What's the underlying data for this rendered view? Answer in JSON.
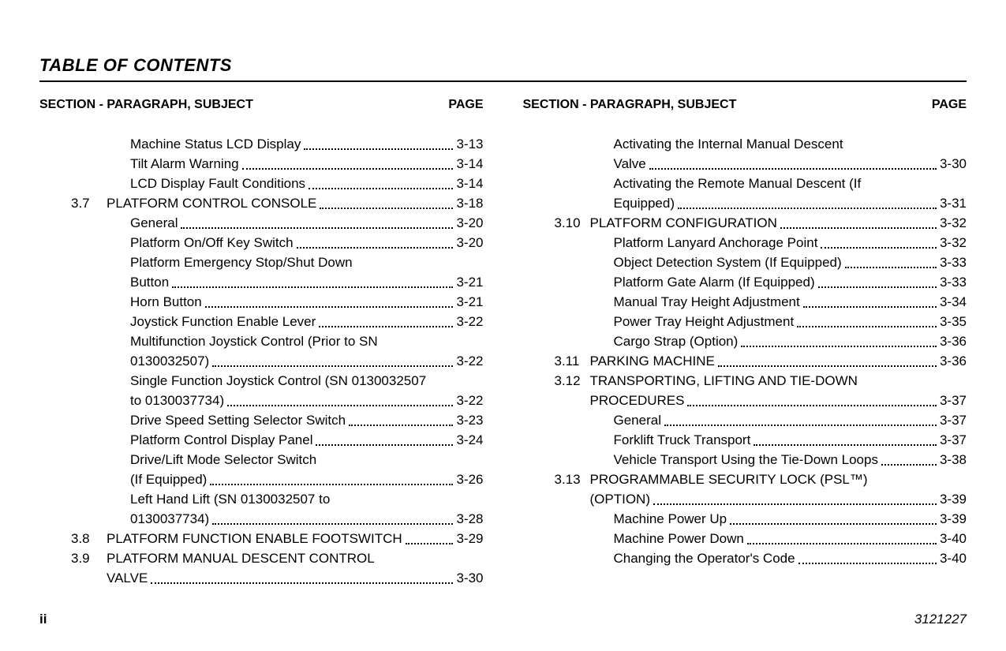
{
  "title": "TABLE OF CONTENTS",
  "header_left": "SECTION - PARAGRAPH, SUBJECT",
  "header_right": "PAGE",
  "footer_page": "ii",
  "footer_doc": "3121227",
  "left_col": [
    {
      "type": "sub",
      "label": "Machine Status LCD Display",
      "page": "3-13"
    },
    {
      "type": "sub",
      "label": "Tilt Alarm Warning",
      "page": "3-14"
    },
    {
      "type": "sub",
      "label": "LCD Display Fault Conditions",
      "page": "3-14"
    },
    {
      "type": "sect",
      "num": "3.7",
      "label": "PLATFORM CONTROL CONSOLE",
      "page": "3-18"
    },
    {
      "type": "sub",
      "label": "General",
      "page": "3-20"
    },
    {
      "type": "sub",
      "label": "Platform On/Off Key Switch",
      "page": "3-20"
    },
    {
      "type": "sub-multi",
      "line1": "Platform Emergency Stop/Shut Down",
      "line2": "Button",
      "page": "3-21"
    },
    {
      "type": "sub",
      "label": "Horn Button",
      "page": "3-21"
    },
    {
      "type": "sub",
      "label": "Joystick Function Enable Lever",
      "page": "3-22"
    },
    {
      "type": "sub-multi",
      "line1": "Multifunction Joystick Control (Prior to SN",
      "line2": "0130032507)",
      "page": "3-22"
    },
    {
      "type": "sub-multi",
      "line1": "Single Function Joystick Control (SN 0130032507",
      "line2": "to 0130037734)",
      "page": "3-22"
    },
    {
      "type": "sub",
      "label": "Drive Speed Setting Selector Switch",
      "page": "3-23"
    },
    {
      "type": "sub",
      "label": "Platform Control Display Panel",
      "page": "3-24"
    },
    {
      "type": "sub-multi",
      "line1": "Drive/Lift Mode Selector Switch",
      "line2": "(If Equipped)",
      "page": "3-26"
    },
    {
      "type": "sub-multi",
      "line1": "Left Hand Lift (SN 0130032507 to",
      "line2": "0130037734)",
      "page": "3-28"
    },
    {
      "type": "sect",
      "num": "3.8",
      "label": "PLATFORM FUNCTION ENABLE FOOTSWITCH",
      "page": "3-29"
    },
    {
      "type": "sect-multi",
      "num": "3.9",
      "line1": "PLATFORM MANUAL DESCENT CONTROL",
      "line2": "VALVE",
      "page": "3-30"
    }
  ],
  "right_col": [
    {
      "type": "sub-multi",
      "line1": "Activating the Internal Manual Descent",
      "line2": "Valve",
      "page": "3-30"
    },
    {
      "type": "sub-multi",
      "line1": "Activating the Remote Manual Descent (If",
      "line2": "Equipped)",
      "page": "3-31"
    },
    {
      "type": "sect",
      "num": "3.10",
      "label": "PLATFORM CONFIGURATION",
      "page": "3-32"
    },
    {
      "type": "sub",
      "label": "Platform Lanyard Anchorage Point",
      "page": "3-32"
    },
    {
      "type": "sub",
      "label": "Object Detection System (If Equipped)",
      "page": "3-33"
    },
    {
      "type": "sub",
      "label": "Platform Gate Alarm (If Equipped)",
      "page": "3-33"
    },
    {
      "type": "sub",
      "label": "Manual Tray Height Adjustment",
      "page": "3-34"
    },
    {
      "type": "sub",
      "label": "Power Tray Height Adjustment",
      "page": "3-35"
    },
    {
      "type": "sub",
      "label": "Cargo Strap (Option)",
      "page": "3-36"
    },
    {
      "type": "sect",
      "num": "3.11",
      "label": "PARKING MACHINE",
      "page": "3-36"
    },
    {
      "type": "sect-multi",
      "num": "3.12",
      "line1": "TRANSPORTING, LIFTING AND TIE-DOWN",
      "line2": "PROCEDURES",
      "page": "3-37"
    },
    {
      "type": "sub",
      "label": "General",
      "page": "3-37"
    },
    {
      "type": "sub",
      "label": "Forklift Truck Transport",
      "page": "3-37"
    },
    {
      "type": "sub",
      "label": "Vehicle Transport Using the Tie-Down Loops",
      "page": "3-38"
    },
    {
      "type": "sect-multi",
      "num": "3.13",
      "line1": "PROGRAMMABLE SECURITY LOCK (PSL™)",
      "line2": "(OPTION)",
      "page": "3-39"
    },
    {
      "type": "sub",
      "label": "Machine Power Up",
      "page": "3-39"
    },
    {
      "type": "sub",
      "label": "Machine Power Down",
      "page": "3-40"
    },
    {
      "type": "sub",
      "label": "Changing the Operator's Code",
      "page": "3-40"
    }
  ]
}
